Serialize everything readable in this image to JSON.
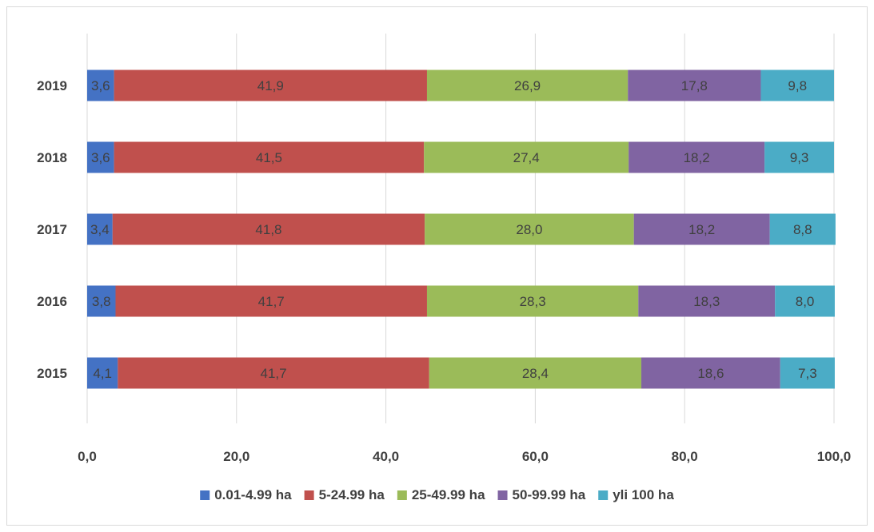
{
  "chart_data": {
    "type": "bar",
    "orientation": "horizontal",
    "stacked": true,
    "categories": [
      "2019",
      "2018",
      "2017",
      "2016",
      "2015"
    ],
    "series": [
      {
        "name": "0.01-4.99 ha",
        "color": "#4472C4",
        "values": [
          3.6,
          3.6,
          3.4,
          3.8,
          4.1
        ],
        "labels": [
          "3,6",
          "3,6",
          "3,4",
          "3,8",
          "4,1"
        ]
      },
      {
        "name": "5-24.99 ha",
        "color": "#C0504D",
        "values": [
          41.9,
          41.5,
          41.8,
          41.7,
          41.7
        ],
        "labels": [
          "41,9",
          "41,5",
          "41,8",
          "41,7",
          "41,7"
        ]
      },
      {
        "name": "25-49.99 ha",
        "color": "#9BBB59",
        "values": [
          26.9,
          27.4,
          28.0,
          28.3,
          28.4
        ],
        "labels": [
          "26,9",
          "27,4",
          "28,0",
          "28,3",
          "28,4"
        ]
      },
      {
        "name": "50-99.99 ha",
        "color": "#8064A2",
        "values": [
          17.8,
          18.2,
          18.2,
          18.3,
          18.6
        ],
        "labels": [
          "17,8",
          "18,2",
          "18,2",
          "18,3",
          "18,6"
        ]
      },
      {
        "name": "yli 100 ha",
        "color": "#4BACC6",
        "values": [
          9.8,
          9.3,
          8.8,
          8.0,
          7.3
        ],
        "labels": [
          "9,8",
          "9,3",
          "8,8",
          "8,0",
          "7,3"
        ]
      }
    ],
    "xlim": [
      0,
      100
    ],
    "xticks": [
      0,
      20,
      40,
      60,
      80,
      100
    ],
    "xtick_labels": [
      "0,0",
      "20,0",
      "40,0",
      "60,0",
      "80,0",
      "100,0"
    ],
    "grid": true,
    "legend": "bottom",
    "title": "",
    "xlabel": "",
    "ylabel": ""
  }
}
